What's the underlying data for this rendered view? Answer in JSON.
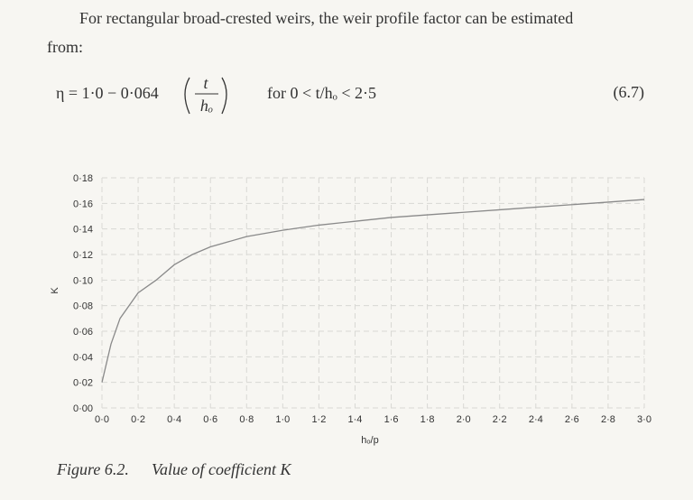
{
  "text": {
    "line1": "For rectangular broad-crested weirs, the weir profile factor can be estimated",
    "line2": "from:"
  },
  "equation": {
    "lhs": "η = 1·0 − 0·064",
    "numerator": "t",
    "denominator": "hₒ",
    "condition": "for 0 < t/hₒ < 2·5",
    "number": "(6.7)"
  },
  "chart_data": {
    "type": "line",
    "x_label": "hₒ/p",
    "y_label": "K",
    "color": "#8a8a8a",
    "grid": true,
    "x": [
      0,
      0.05,
      0.1,
      0.2,
      0.3,
      0.4,
      0.5,
      0.6,
      0.8,
      1.0,
      1.2,
      1.4,
      1.6,
      1.8,
      2.0,
      2.2,
      2.4,
      2.6,
      2.8,
      3.0
    ],
    "values": [
      0.02,
      0.05,
      0.07,
      0.09,
      0.1,
      0.112,
      0.12,
      0.126,
      0.134,
      0.139,
      0.143,
      0.146,
      0.149,
      0.151,
      0.153,
      0.155,
      0.157,
      0.159,
      0.161,
      0.163
    ],
    "xlim": [
      0,
      3.0
    ],
    "ylim": [
      0,
      0.18
    ],
    "xticks": [
      {
        "value": 0,
        "label": "0·0"
      },
      {
        "value": 0.2,
        "label": "0·2"
      },
      {
        "value": 0.4,
        "label": "0·4"
      },
      {
        "value": 0.6,
        "label": "0·6"
      },
      {
        "value": 0.8,
        "label": "0·8"
      },
      {
        "value": 1.0,
        "label": "1·0"
      },
      {
        "value": 1.2,
        "label": "1·2"
      },
      {
        "value": 1.4,
        "label": "1·4"
      },
      {
        "value": 1.6,
        "label": "1·6"
      },
      {
        "value": 1.8,
        "label": "1·8"
      },
      {
        "value": 2.0,
        "label": "2·0"
      },
      {
        "value": 2.2,
        "label": "2·2"
      },
      {
        "value": 2.4,
        "label": "2·4"
      },
      {
        "value": 2.6,
        "label": "2·6"
      },
      {
        "value": 2.8,
        "label": "2·8"
      },
      {
        "value": 3.0,
        "label": "3·0"
      }
    ],
    "yticks": [
      {
        "value": 0,
        "label": "0·00"
      },
      {
        "value": 0.02,
        "label": "0·02"
      },
      {
        "value": 0.04,
        "label": "0·04"
      },
      {
        "value": 0.06,
        "label": "0·06"
      },
      {
        "value": 0.08,
        "label": "0·08"
      },
      {
        "value": 0.1,
        "label": "0·10"
      },
      {
        "value": 0.12,
        "label": "0·12"
      },
      {
        "value": 0.14,
        "label": "0·14"
      },
      {
        "value": 0.16,
        "label": "0·16"
      },
      {
        "value": 0.18,
        "label": "0·18"
      }
    ]
  },
  "caption": {
    "label": "Figure 6.2.",
    "text": "Value of coefficient K"
  }
}
